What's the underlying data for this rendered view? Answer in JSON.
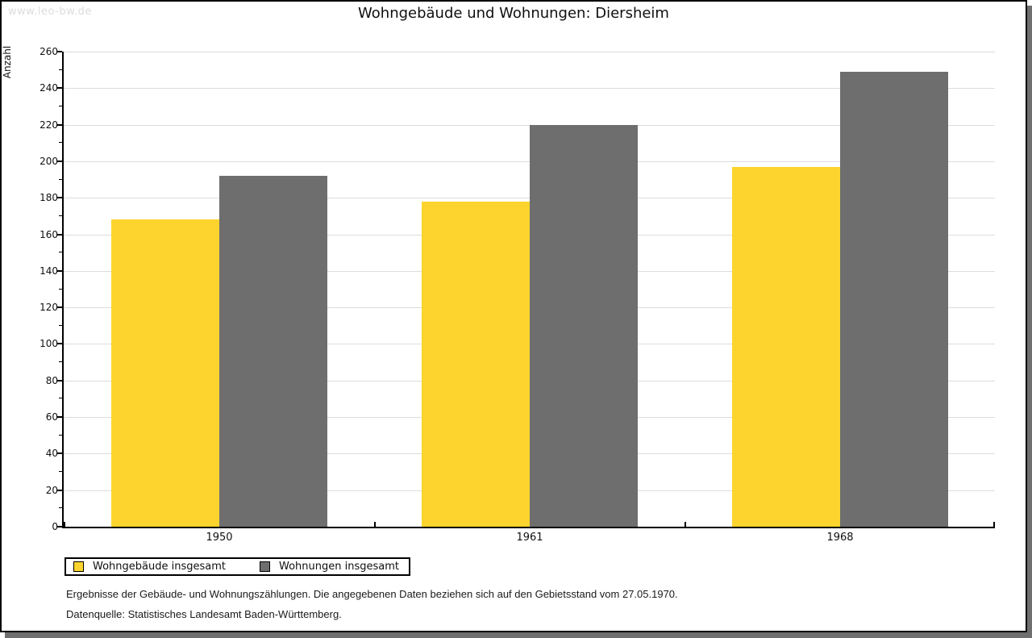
{
  "watermark": "www.leo-bw.de",
  "title": "Wohngebäude und Wohnungen: Diersheim",
  "chart_data": {
    "type": "bar",
    "title": "Wohngebäude und Wohnungen: Diersheim",
    "categories": [
      "1950",
      "1961",
      "1968"
    ],
    "series": [
      {
        "name": "Wohngebäude insgesamt",
        "color": "#FCD42D",
        "values": [
          168,
          178,
          197
        ]
      },
      {
        "name": "Wohnungen insgesamt",
        "color": "#6E6E6E",
        "values": [
          192,
          220,
          249
        ]
      }
    ],
    "xlabel": "",
    "ylabel": "Anzahl",
    "ylim": [
      0,
      260
    ],
    "ytick_step": 20,
    "yminor_step": 10,
    "grid": true,
    "gridline_color": "#DCDCDC",
    "legend_position": "bottom-left"
  },
  "footer": {
    "line1": "Ergebnisse der Gebäude- und Wohnungszählungen. Die angegebenen Daten beziehen sich auf den Gebietsstand vom 27.05.1970.",
    "line2": "Datenquelle: Statistisches Landesamt Baden-Württemberg."
  }
}
